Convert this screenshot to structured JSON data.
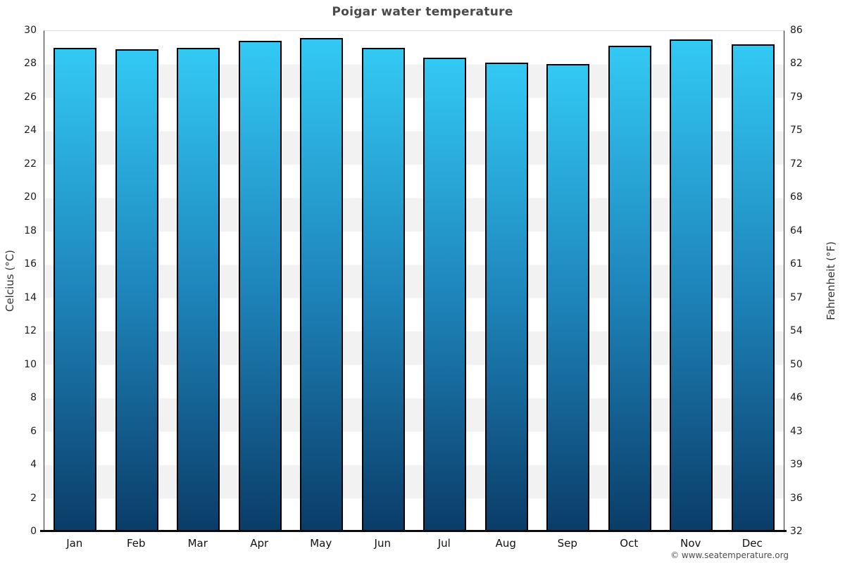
{
  "title": "Poigar water temperature",
  "watermark": "© www.seatemperature.org",
  "chart_data": {
    "type": "bar",
    "title": "Poigar water temperature",
    "categories": [
      "Jan",
      "Feb",
      "Mar",
      "Apr",
      "May",
      "Jun",
      "Jul",
      "Aug",
      "Sep",
      "Oct",
      "Nov",
      "Dec"
    ],
    "values": [
      29.0,
      28.9,
      29.0,
      29.4,
      29.6,
      29.0,
      28.4,
      28.1,
      28.0,
      29.1,
      29.5,
      29.2
    ],
    "unit": "°C",
    "ylabel_left": "Celcius (°C)",
    "ylabel_right": "Fahrenheit (°F)",
    "ylim_celsius": [
      0,
      30
    ],
    "yticks_celsius": [
      0,
      2,
      4,
      6,
      8,
      10,
      12,
      14,
      16,
      18,
      20,
      22,
      24,
      26,
      28,
      30
    ],
    "yticks_fahrenheit": [
      "32",
      "36",
      "39",
      "43",
      "46",
      "50",
      "54",
      "57",
      "61",
      "64",
      "68",
      "72",
      "75",
      "79",
      "82",
      "86"
    ],
    "legend": "none",
    "grid": "horizontal zebra bands every 2°C",
    "colors": {
      "bar_top": "#33c9f4",
      "bar_mid": "#1e85bb",
      "bar_bottom": "#0a3c68",
      "bar_border": "#000000",
      "band_gray": "#f2f2f2",
      "band_white": "#ffffff",
      "title_text": "#4a4a4a",
      "axis_text": "#1c1c1c"
    }
  }
}
